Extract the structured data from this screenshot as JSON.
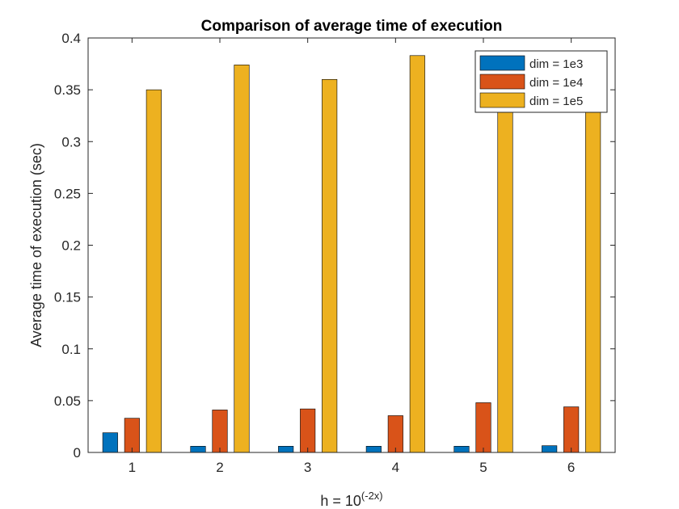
{
  "chart_data": {
    "type": "bar",
    "title": "Comparison of average time of execution",
    "xlabel_base": "h = 10",
    "xlabel_exponent": "(-2x)",
    "ylabel": "Average time of execution (sec)",
    "categories": [
      "1",
      "2",
      "3",
      "4",
      "5",
      "6"
    ],
    "ylim": [
      0,
      0.4
    ],
    "yticks": [
      0,
      0.05,
      0.1,
      0.15,
      0.2,
      0.25,
      0.3,
      0.35,
      0.4
    ],
    "ytick_labels": [
      "0",
      "0.05",
      "0.1",
      "0.15",
      "0.2",
      "0.25",
      "0.3",
      "0.35",
      "0.4"
    ],
    "grid": false,
    "legend_position": "top-right",
    "series": [
      {
        "name": "dim = 1e3",
        "color": "#0072BD",
        "values": [
          0.019,
          0.006,
          0.006,
          0.006,
          0.006,
          0.0065
        ]
      },
      {
        "name": "dim = 1e4",
        "color": "#D95319",
        "values": [
          0.033,
          0.041,
          0.042,
          0.0355,
          0.048,
          0.044
        ]
      },
      {
        "name": "dim = 1e5",
        "color": "#EDB120",
        "values": [
          0.35,
          0.374,
          0.36,
          0.383,
          0.357,
          0.35
        ]
      }
    ]
  }
}
